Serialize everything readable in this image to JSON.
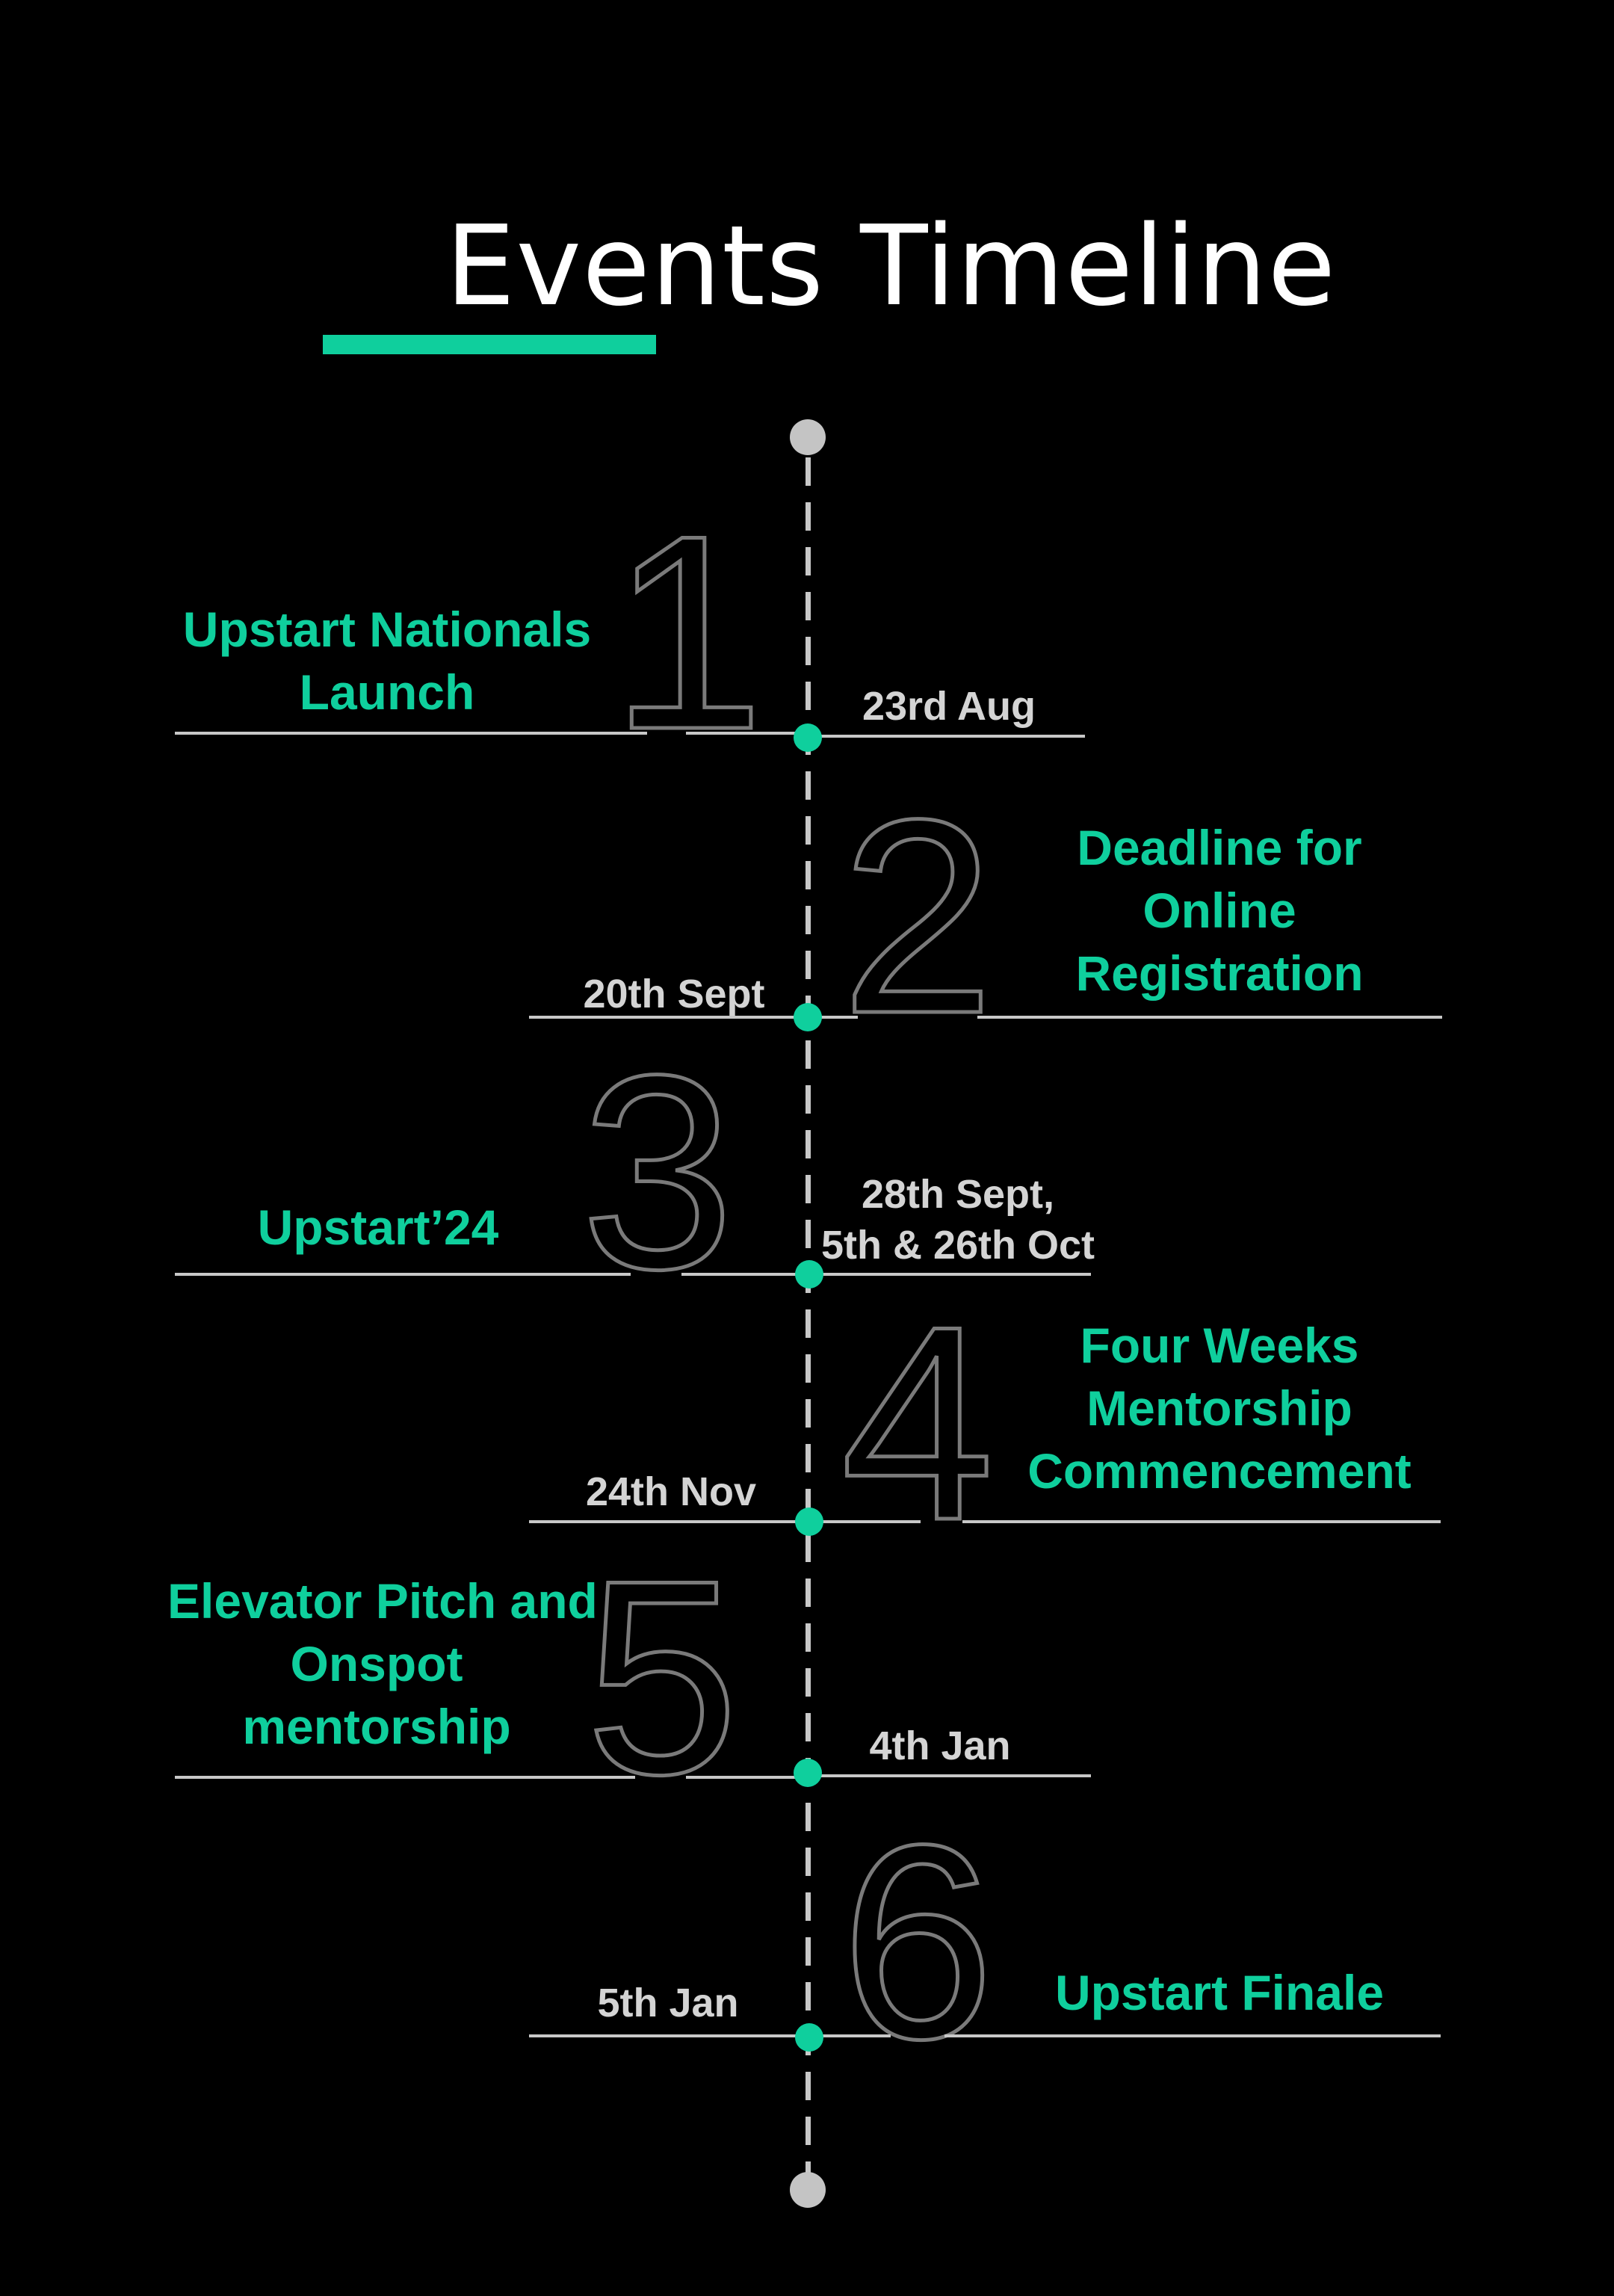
{
  "title": "Events Timeline",
  "colors": {
    "accent": "#0fcf9d",
    "line": "#c8c8c8",
    "number_outline": "#7a7a7a",
    "background": "#000000"
  },
  "events": [
    {
      "number": "1",
      "label_lines": [
        "Upstart Nationals",
        "Launch"
      ],
      "date_lines": [
        "23rd Aug"
      ]
    },
    {
      "number": "2",
      "label_lines": [
        "Deadline for",
        "Online",
        "Registration"
      ],
      "date_lines": [
        "20th Sept"
      ]
    },
    {
      "number": "3",
      "label_lines": [
        "Upstart’24"
      ],
      "date_lines": [
        "28th Sept,",
        "5th & 26th Oct"
      ]
    },
    {
      "number": "4",
      "label_lines": [
        "Four Weeks",
        "Mentorship",
        "Commencement"
      ],
      "date_lines": [
        "24th Nov"
      ]
    },
    {
      "number": "5",
      "label_lines": [
        "Elevator Pitch and",
        "Onspot",
        "mentorship"
      ],
      "date_lines": [
        "4th Jan"
      ]
    },
    {
      "number": "6",
      "label_lines": [
        "Upstart Finale"
      ],
      "date_lines": [
        "5th Jan"
      ]
    }
  ]
}
